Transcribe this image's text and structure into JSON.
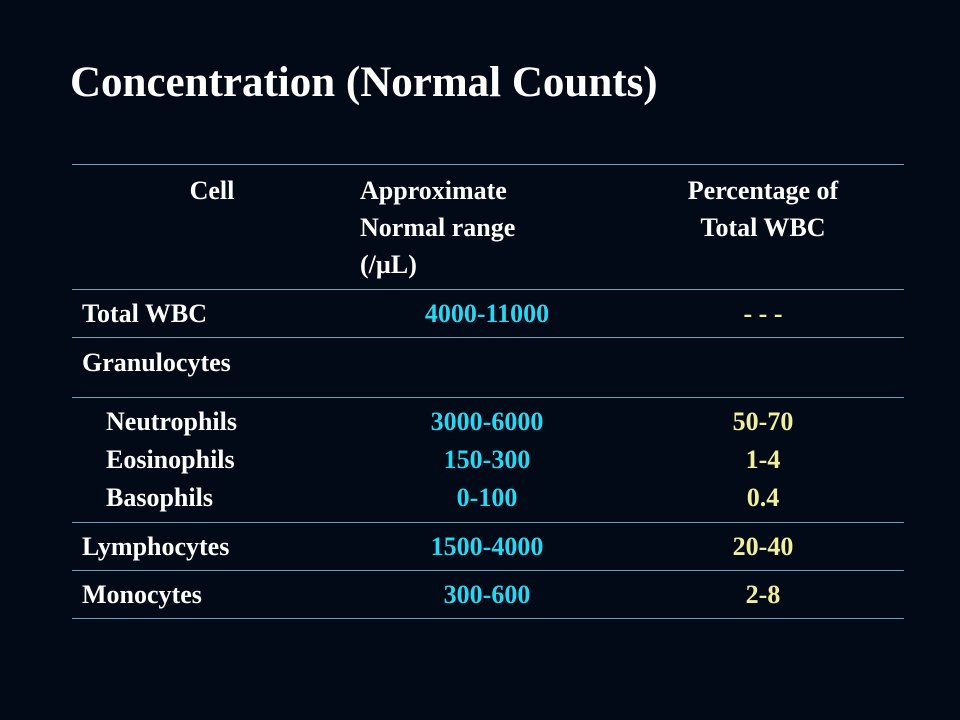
{
  "title": "Concentration (Normal Counts)",
  "table": {
    "headers": {
      "cell": "Cell",
      "range": [
        "Approximate",
        "Normal range",
        "(/µL)"
      ],
      "percent": [
        "Percentage of",
        "Total WBC"
      ]
    },
    "rows": {
      "total_wbc": {
        "name": "Total WBC",
        "range": "4000-11000",
        "percent": "- - -"
      },
      "granulocytes": {
        "name": "Granulocytes"
      },
      "neutrophils": {
        "name": "Neutrophils",
        "range": "3000-6000",
        "percent": "50-70"
      },
      "eosinophils": {
        "name": "Eosinophils",
        "range": "150-300",
        "percent": "1-4"
      },
      "basophils": {
        "name": "Basophils",
        "range": "0-100",
        "percent": "0.4"
      },
      "lymphocytes": {
        "name": "Lymphocytes",
        "range": "1500-4000",
        "percent": "20-40"
      },
      "monocytes": {
        "name": "Monocytes",
        "range": "300-600",
        "percent": "2-8"
      }
    }
  },
  "colors": {
    "background": "#030a17",
    "text": "#ffffff",
    "range_values": "#2ad7f2",
    "percent_values": "#f2ef9c",
    "rule_lines": "#6fa3b6"
  }
}
